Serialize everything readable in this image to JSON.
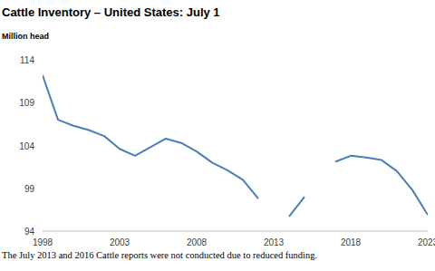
{
  "chart_data": {
    "type": "line",
    "title": "Cattle Inventory – United States: July 1",
    "ylabel": "Million head",
    "annotation": "The July 2013 and 2016 Cattle reports were not conducted due to reduced funding.",
    "x": [
      1998,
      1999,
      2000,
      2001,
      2002,
      2003,
      2004,
      2005,
      2006,
      2007,
      2008,
      2009,
      2010,
      2011,
      2012,
      2013,
      2014,
      2015,
      2016,
      2017,
      2018,
      2019,
      2020,
      2021,
      2022,
      2023
    ],
    "values": [
      112.2,
      107.0,
      106.3,
      105.8,
      105.1,
      103.6,
      102.8,
      103.8,
      104.8,
      104.3,
      103.3,
      102.0,
      101.1,
      100.0,
      97.8,
      null,
      95.7,
      98.0,
      null,
      102.1,
      102.8,
      102.6,
      102.3,
      101.0,
      98.8,
      95.9
    ],
    "color": "#4a7ebb",
    "xlim": [
      1998,
      2023
    ],
    "xticks": [
      1998,
      2003,
      2008,
      2013,
      2018,
      2023
    ],
    "ylim": [
      94,
      114
    ],
    "yticks": [
      94,
      99,
      104,
      109,
      114
    ],
    "grid": false
  }
}
